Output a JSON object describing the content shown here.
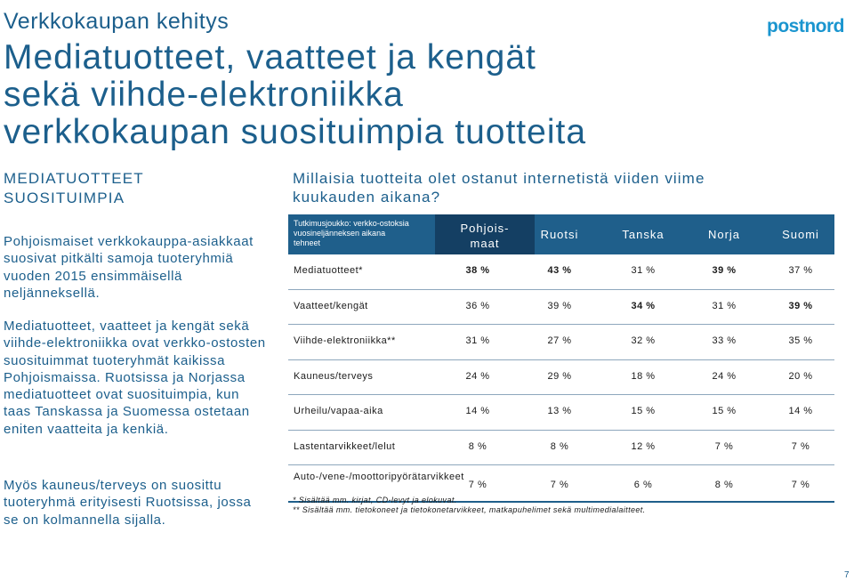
{
  "header": {
    "kicker": "Verkkokaupan kehitys",
    "title_lines": [
      "Mediatuotteet, vaatteet ja kengät",
      "sekä viihde-elektroniikka",
      "verkkokaupan suosituimpia tuotteita"
    ],
    "logo_text": "postnord"
  },
  "left": {
    "heading_lines": [
      "MEDIATUOTTEET",
      "SUOSITUIMPIA"
    ],
    "paragraphs": [
      "Pohjoismaiset verkkokauppa-asiakkaat suosivat pitkälti samoja tuoteryhmiä vuoden 2015 ensimmäisellä neljänneksellä.",
      "Mediatuotteet, vaatteet ja kengät sekä viihde-elektroniikka ovat verkko-ostosten suosituimmat tuoteryhmät kaikissa Pohjoismaissa. Ruotsissa ja Norjassa mediatuotteet ovat suosituimpia, kun taas Tanskassa ja Suomessa ostetaan eniten vaatteita ja kenkiä.",
      "Myös kauneus/terveys on suosittu tuoteryhmä erityisesti Ruotsissa, jossa se on kolmannella sijalla."
    ]
  },
  "question_lines": [
    "Millaisia tuotteita olet ostanut internetistä viiden viime",
    "kuukauden aikana?"
  ],
  "table": {
    "note": "Tutkimusjoukko: verkko-ostoksia vuosineljänneksen aikana tehneet",
    "columns": [
      "Pohjois-\nmaat",
      "Ruotsi",
      "Tanska",
      "Norja",
      "Suomi"
    ],
    "rows": [
      {
        "label": "Mediatuotteet*",
        "values": [
          "38 %",
          "43 %",
          "31 %",
          "39 %",
          "37 %"
        ]
      },
      {
        "label": "Vaatteet/kengät",
        "values": [
          "36 %",
          "39 %",
          "34 %",
          "31 %",
          "39 %"
        ]
      },
      {
        "label": "Viihde-elektroniikka**",
        "values": [
          "31 %",
          "27 %",
          "32 %",
          "33 %",
          "35 %"
        ]
      },
      {
        "label": "Kauneus/terveys",
        "values": [
          "24 %",
          "29 %",
          "18 %",
          "24 %",
          "20 %"
        ]
      },
      {
        "label": "Urheilu/vapaa-aika",
        "values": [
          "14 %",
          "13 %",
          "15 %",
          "15 %",
          "14 %"
        ]
      },
      {
        "label": "Lastentarvikkeet/lelut",
        "values": [
          "8 %",
          "8 %",
          "12 %",
          "7 %",
          "7 %"
        ]
      },
      {
        "label": "Auto-/vene-/moottoripyörätarvikkeet",
        "values": [
          "7 %",
          "7 %",
          "6 %",
          "8 %",
          "7 %"
        ]
      }
    ]
  },
  "footnotes": [
    "* Sisältää mm. kirjat, CD-levyt ja elokuvat.",
    "** Sisältää mm. tietokoneet ja tietokonetarvikkeet, matkapuhelimet sekä multimedialaitteet."
  ],
  "page_number": "7",
  "colors": {
    "brand": "#1c5f8c",
    "header_bg": "#1f5f8b",
    "header_highlight": "#143f63"
  }
}
